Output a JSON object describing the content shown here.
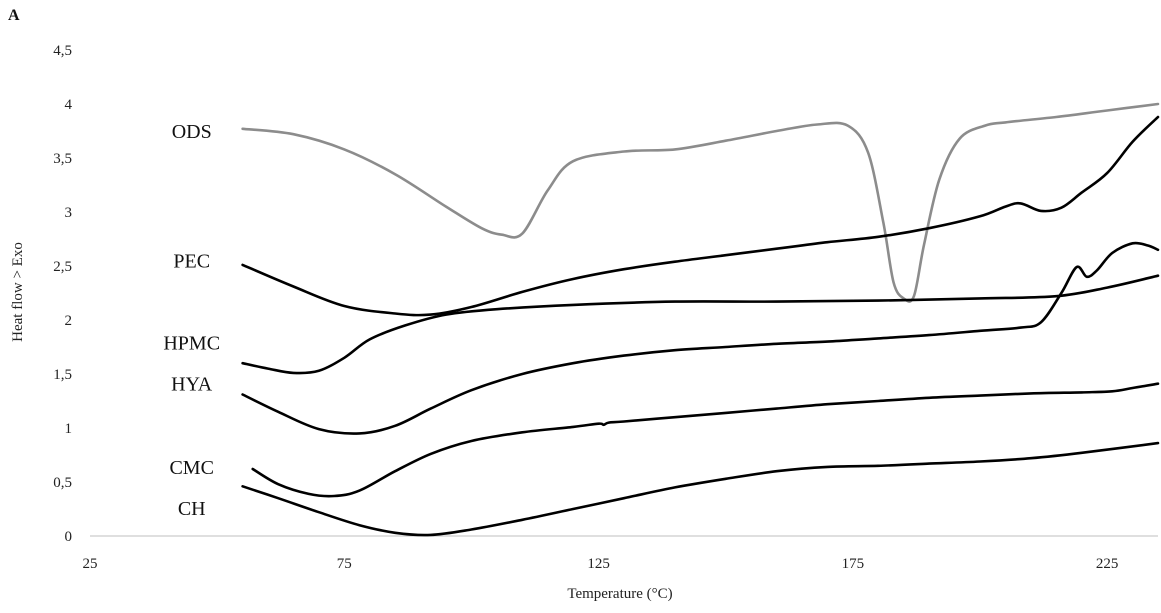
{
  "chart_data": {
    "type": "line",
    "panel_label": "A",
    "title": "",
    "xlabel": "Temperature (°C)",
    "ylabel": "Heat flow > Exo",
    "xlim": [
      25,
      235
    ],
    "ylim": [
      0,
      4.5
    ],
    "x_ticks": [
      25,
      75,
      125,
      175,
      225
    ],
    "y_ticks": [
      "0",
      "0,5",
      "1",
      "1,5",
      "2",
      "2,5",
      "3",
      "3,5",
      "4",
      "4,5"
    ],
    "grid": false,
    "legend": "none",
    "series": [
      {
        "name": "ODS",
        "color": "#8c8c8c",
        "points": [
          [
            55,
            3.77
          ],
          [
            65,
            3.72
          ],
          [
            75,
            3.58
          ],
          [
            85,
            3.35
          ],
          [
            95,
            3.05
          ],
          [
            102,
            2.85
          ],
          [
            106,
            2.79
          ],
          [
            110,
            2.8
          ],
          [
            115,
            3.2
          ],
          [
            120,
            3.47
          ],
          [
            130,
            3.56
          ],
          [
            140,
            3.58
          ],
          [
            150,
            3.66
          ],
          [
            160,
            3.75
          ],
          [
            168,
            3.81
          ],
          [
            174,
            3.8
          ],
          [
            178,
            3.55
          ],
          [
            181,
            2.9
          ],
          [
            183,
            2.35
          ],
          [
            185,
            2.2
          ],
          [
            187,
            2.22
          ],
          [
            189,
            2.7
          ],
          [
            192,
            3.3
          ],
          [
            196,
            3.68
          ],
          [
            201,
            3.8
          ],
          [
            205,
            3.83
          ],
          [
            215,
            3.88
          ],
          [
            225,
            3.94
          ],
          [
            235,
            4.0
          ]
        ]
      },
      {
        "name": "PEC",
        "color": "#000000",
        "points": [
          [
            55,
            2.51
          ],
          [
            65,
            2.31
          ],
          [
            75,
            2.13
          ],
          [
            85,
            2.06
          ],
          [
            92,
            2.05
          ],
          [
            100,
            2.12
          ],
          [
            110,
            2.26
          ],
          [
            120,
            2.38
          ],
          [
            130,
            2.47
          ],
          [
            140,
            2.54
          ],
          [
            150,
            2.6
          ],
          [
            160,
            2.66
          ],
          [
            170,
            2.72
          ],
          [
            180,
            2.77
          ],
          [
            190,
            2.85
          ],
          [
            200,
            2.96
          ],
          [
            205,
            3.05
          ],
          [
            208,
            3.08
          ],
          [
            212,
            3.01
          ],
          [
            216,
            3.04
          ],
          [
            220,
            3.18
          ],
          [
            225,
            3.36
          ],
          [
            230,
            3.65
          ],
          [
            235,
            3.88
          ]
        ]
      },
      {
        "name": "HPMC",
        "color": "#000000",
        "points": [
          [
            55,
            1.6
          ],
          [
            60,
            1.55
          ],
          [
            65,
            1.51
          ],
          [
            70,
            1.53
          ],
          [
            75,
            1.65
          ],
          [
            80,
            1.82
          ],
          [
            87,
            1.95
          ],
          [
            95,
            2.05
          ],
          [
            105,
            2.1
          ],
          [
            120,
            2.14
          ],
          [
            140,
            2.17
          ],
          [
            160,
            2.17
          ],
          [
            180,
            2.18
          ],
          [
            200,
            2.2
          ],
          [
            215,
            2.22
          ],
          [
            225,
            2.3
          ],
          [
            235,
            2.41
          ]
        ]
      },
      {
        "name": "HYA",
        "color": "#000000",
        "points": [
          [
            55,
            1.31
          ],
          [
            62,
            1.15
          ],
          [
            70,
            0.99
          ],
          [
            78,
            0.95
          ],
          [
            85,
            1.02
          ],
          [
            92,
            1.18
          ],
          [
            100,
            1.35
          ],
          [
            110,
            1.5
          ],
          [
            120,
            1.6
          ],
          [
            130,
            1.67
          ],
          [
            140,
            1.72
          ],
          [
            150,
            1.75
          ],
          [
            160,
            1.78
          ],
          [
            170,
            1.8
          ],
          [
            180,
            1.83
          ],
          [
            190,
            1.86
          ],
          [
            200,
            1.9
          ],
          [
            208,
            1.93
          ],
          [
            212,
            1.98
          ],
          [
            216,
            2.25
          ],
          [
            219,
            2.49
          ],
          [
            221,
            2.4
          ],
          [
            223,
            2.46
          ],
          [
            226,
            2.62
          ],
          [
            230,
            2.71
          ],
          [
            233,
            2.69
          ],
          [
            235,
            2.65
          ]
        ]
      },
      {
        "name": "CMC",
        "color": "#000000",
        "points": [
          [
            57,
            0.62
          ],
          [
            62,
            0.48
          ],
          [
            68,
            0.39
          ],
          [
            73,
            0.37
          ],
          [
            78,
            0.42
          ],
          [
            85,
            0.6
          ],
          [
            92,
            0.76
          ],
          [
            100,
            0.88
          ],
          [
            110,
            0.96
          ],
          [
            120,
            1.01
          ],
          [
            125,
            1.04
          ],
          [
            126,
            1.03
          ],
          [
            127,
            1.05
          ],
          [
            130,
            1.06
          ],
          [
            140,
            1.1
          ],
          [
            150,
            1.14
          ],
          [
            160,
            1.18
          ],
          [
            170,
            1.22
          ],
          [
            180,
            1.25
          ],
          [
            190,
            1.28
          ],
          [
            200,
            1.3
          ],
          [
            210,
            1.32
          ],
          [
            220,
            1.33
          ],
          [
            226,
            1.34
          ],
          [
            230,
            1.37
          ],
          [
            235,
            1.41
          ]
        ]
      },
      {
        "name": "CH",
        "color": "#000000",
        "points": [
          [
            55,
            0.46
          ],
          [
            62,
            0.35
          ],
          [
            70,
            0.22
          ],
          [
            78,
            0.1
          ],
          [
            85,
            0.03
          ],
          [
            92,
            0.01
          ],
          [
            100,
            0.06
          ],
          [
            110,
            0.15
          ],
          [
            120,
            0.25
          ],
          [
            130,
            0.35
          ],
          [
            140,
            0.45
          ],
          [
            150,
            0.53
          ],
          [
            160,
            0.6
          ],
          [
            170,
            0.64
          ],
          [
            180,
            0.65
          ],
          [
            190,
            0.67
          ],
          [
            200,
            0.69
          ],
          [
            210,
            0.72
          ],
          [
            220,
            0.77
          ],
          [
            235,
            0.86
          ]
        ]
      }
    ],
    "series_labels": [
      {
        "text": "ODS",
        "x": 45,
        "y": 3.75
      },
      {
        "text": "PEC",
        "x": 45,
        "y": 2.55
      },
      {
        "text": "HPMC",
        "x": 45,
        "y": 1.79
      },
      {
        "text": "HYA",
        "x": 45,
        "y": 1.41
      },
      {
        "text": "CMC",
        "x": 45,
        "y": 0.64
      },
      {
        "text": "CH",
        "x": 45,
        "y": 0.26
      }
    ]
  }
}
